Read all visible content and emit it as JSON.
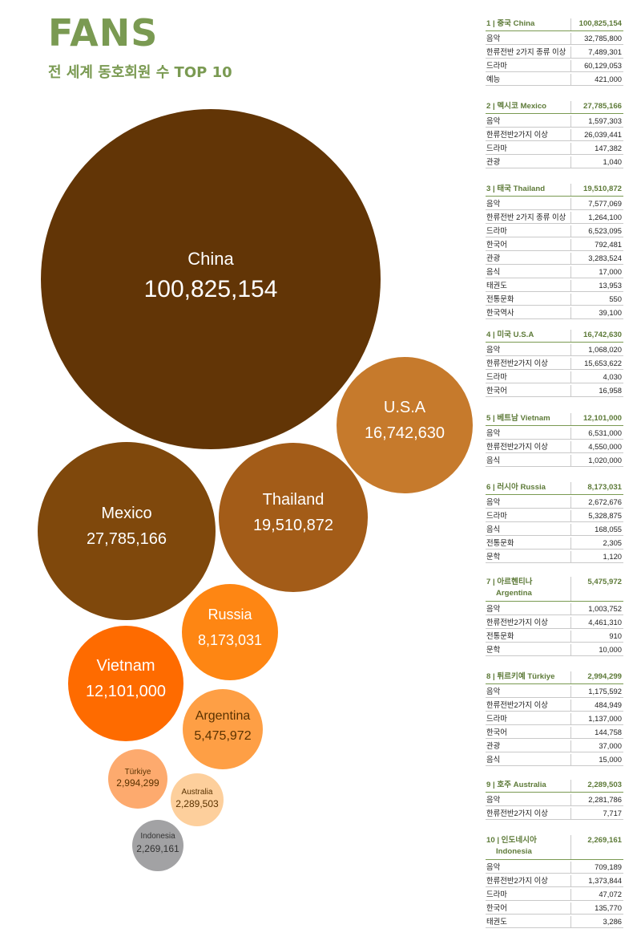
{
  "title": "FANS",
  "subtitle": "전 세계 동호회원 수 TOP 10",
  "chart_data": {
    "type": "bubble",
    "points": [
      {
        "label": "China",
        "value": "100,825,154",
        "v": 100825154,
        "color": "#623506"
      },
      {
        "label": "U.S.A",
        "value": "16,742,630",
        "v": 16742630,
        "color": "#c67a2c"
      },
      {
        "label": "Mexico",
        "value": "27,785,166",
        "v": 27785166,
        "color": "#7f480c"
      },
      {
        "label": "Thailand",
        "value": "19,510,872",
        "v": 19510872,
        "color": "#a35c18"
      },
      {
        "label": "Russia",
        "value": "8,173,031",
        "v": 8173031,
        "color": "#fe8613"
      },
      {
        "label": "Vietnam",
        "value": "12,101,000",
        "v": 12101000,
        "color": "#fe6b00"
      },
      {
        "label": "Argentina",
        "value": "5,475,972",
        "v": 5475972,
        "color": "#fe9f45"
      },
      {
        "label": "Türkiye",
        "value": "2,994,299",
        "v": 2994299,
        "color": "#fdaa6e"
      },
      {
        "label": "Australia",
        "value": "2,289,503",
        "v": 2289503,
        "color": "#fdcf9c"
      },
      {
        "label": "Indonesia",
        "value": "2,269,161",
        "v": 2269161,
        "color": "#a2a2a4"
      }
    ]
  },
  "tables": [
    {
      "header": "1 | 중국 China",
      "total": "100,825,154",
      "rows": [
        {
          "cat": "음악",
          "val": "32,785,800"
        },
        {
          "cat": "한류전반 2가지 종류 이상",
          "val": "7,489,301"
        },
        {
          "cat": "드라마",
          "val": "60,129,053"
        },
        {
          "cat": "예능",
          "val": "421,000"
        }
      ]
    },
    {
      "header": "2 | 멕시코 Mexico",
      "total": "27,785,166",
      "rows": [
        {
          "cat": "음악",
          "val": "1,597,303"
        },
        {
          "cat": "한류전반2가지 이상",
          "val": "26,039,441"
        },
        {
          "cat": "드라마",
          "val": "147,382"
        },
        {
          "cat": "관광",
          "val": "1,040"
        }
      ]
    },
    {
      "header": "3 | 태국 Thailand",
      "total": "19,510,872",
      "rows": [
        {
          "cat": "음악",
          "val": "7,577,069"
        },
        {
          "cat": "한류전반 2가지 종류 이상",
          "val": "1,264,100"
        },
        {
          "cat": "드라마",
          "val": "6,523,095"
        },
        {
          "cat": "한국어",
          "val": "792,481"
        },
        {
          "cat": "관광",
          "val": "3,283,524"
        },
        {
          "cat": "음식",
          "val": "17,000"
        },
        {
          "cat": "태권도",
          "val": "13,953"
        },
        {
          "cat": "전통문화",
          "val": "550"
        },
        {
          "cat": "한국역사",
          "val": "39,100"
        }
      ]
    },
    {
      "header": "4 | 미국 U.S.A",
      "total": "16,742,630",
      "rows": [
        {
          "cat": "음악",
          "val": "1,068,020"
        },
        {
          "cat": "한류전반2가지 이상",
          "val": "15,653,622"
        },
        {
          "cat": "드라마",
          "val": "4,030"
        },
        {
          "cat": "한국어",
          "val": "16,958"
        }
      ]
    },
    {
      "header": "5 | 베트남 Vietnam",
      "total": "12,101,000",
      "rows": [
        {
          "cat": "음악",
          "val": "6,531,000"
        },
        {
          "cat": "한류전반2가지 이상",
          "val": "4,550,000"
        },
        {
          "cat": "음식",
          "val": "1,020,000"
        }
      ]
    },
    {
      "header": "6 | 러시아 Russia",
      "total": "8,173,031",
      "rows": [
        {
          "cat": "음악",
          "val": "2,672,676"
        },
        {
          "cat": "드라마",
          "val": "5,328,875"
        },
        {
          "cat": "음식",
          "val": "168,055"
        },
        {
          "cat": "전통문화",
          "val": "2,305"
        },
        {
          "cat": "문학",
          "val": "1,120"
        }
      ]
    },
    {
      "header": "7 | 아르헨티나",
      "header2": "Argentina",
      "total": "5,475,972",
      "rows": [
        {
          "cat": "음악",
          "val": "1,003,752"
        },
        {
          "cat": "한류전반2가지 이상",
          "val": "4,461,310"
        },
        {
          "cat": "전통문화",
          "val": "910"
        },
        {
          "cat": "문학",
          "val": "10,000"
        }
      ]
    },
    {
      "header": "8 | 튀르키예 Türkiye",
      "total": "2,994,299",
      "rows": [
        {
          "cat": "음악",
          "val": "1,175,592"
        },
        {
          "cat": "한류전반2가지 이상",
          "val": "484,949"
        },
        {
          "cat": "드라마",
          "val": "1,137,000"
        },
        {
          "cat": "한국어",
          "val": "144,758"
        },
        {
          "cat": "관광",
          "val": "37,000"
        },
        {
          "cat": "음식",
          "val": "15,000"
        }
      ]
    },
    {
      "header": "9 | 호주 Australia",
      "total": "2,289,503",
      "rows": [
        {
          "cat": "음악",
          "val": "2,281,786"
        },
        {
          "cat": "한류전반2가지 이상",
          "val": "7,717"
        }
      ]
    },
    {
      "header": "10 | 인도네시아",
      "header2": "Indonesia",
      "total": "2,269,161",
      "rows": [
        {
          "cat": "음악",
          "val": "709,189"
        },
        {
          "cat": "한류전반2가지 이상",
          "val": "1,373,844"
        },
        {
          "cat": "드라마",
          "val": "47,072"
        },
        {
          "cat": "한국어",
          "val": "135,770"
        },
        {
          "cat": "태권도",
          "val": "3,286"
        }
      ]
    }
  ]
}
